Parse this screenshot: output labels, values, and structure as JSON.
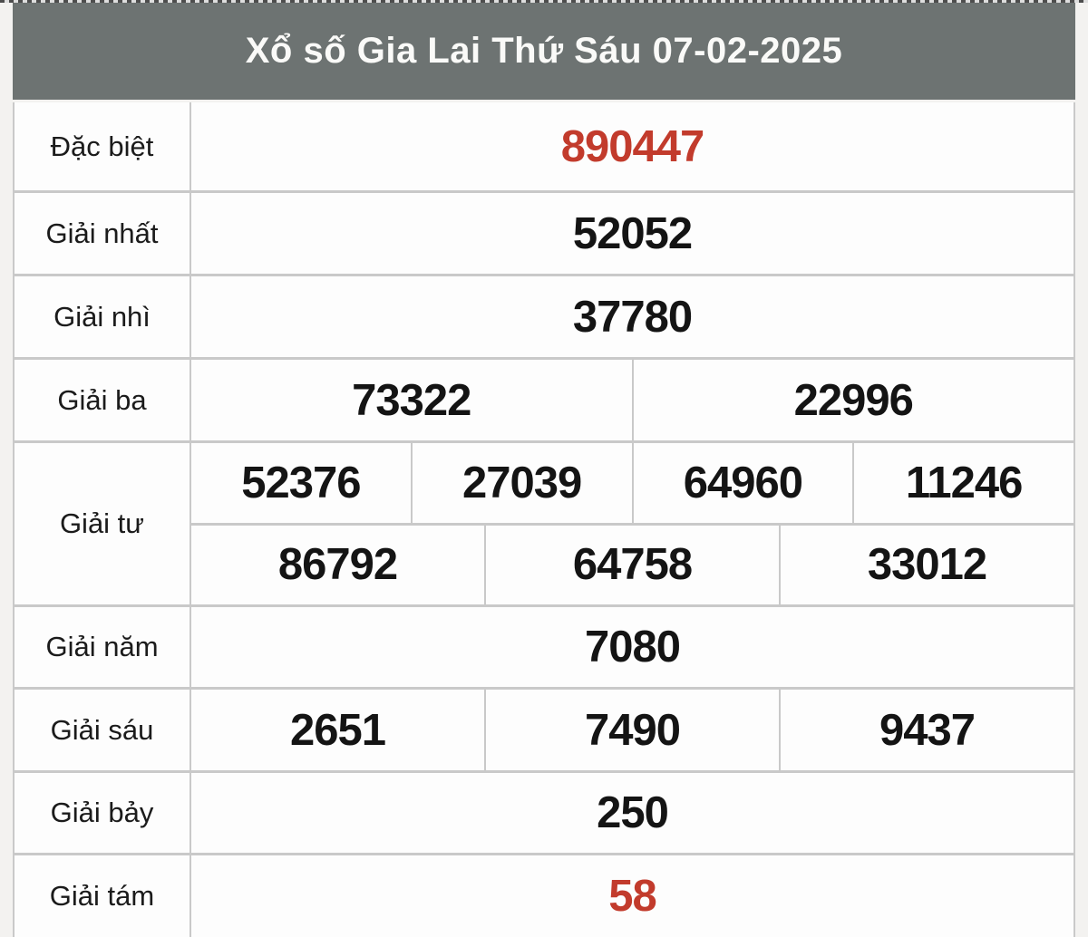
{
  "header": {
    "title": "Xổ số Gia Lai Thứ Sáu 07-02-2025",
    "region": "Gia Lai",
    "day": "Thứ Sáu",
    "date": "07-02-2025"
  },
  "colors": {
    "header_bg": "#6d7372",
    "header_text": "#fafaf8",
    "accent_red": "#c23b2c",
    "border": "#c9c9c9",
    "page_bg": "#f3f2f0",
    "cell_bg": "#fdfdfd",
    "text": "#141414"
  },
  "table": {
    "rows": [
      {
        "label": "Đặc biệt",
        "cells": [
          "890447"
        ],
        "highlight": true
      },
      {
        "label": "Giải nhất",
        "cells": [
          "52052"
        ]
      },
      {
        "label": "Giải nhì",
        "cells": [
          "37780"
        ]
      },
      {
        "label": "Giải ba",
        "cells": [
          "73322",
          "22996"
        ]
      },
      {
        "label": "Giải tư",
        "cells_row1": [
          "52376",
          "27039",
          "64960",
          "11246"
        ],
        "cells_row2": [
          "86792",
          "64758",
          "33012"
        ]
      },
      {
        "label": "Giải năm",
        "cells": [
          "7080"
        ]
      },
      {
        "label": "Giải sáu",
        "cells": [
          "2651",
          "7490",
          "9437"
        ]
      },
      {
        "label": "Giải bảy",
        "cells": [
          "250"
        ]
      },
      {
        "label": "Giải tám",
        "cells": [
          "58"
        ],
        "highlight": true
      }
    ]
  }
}
